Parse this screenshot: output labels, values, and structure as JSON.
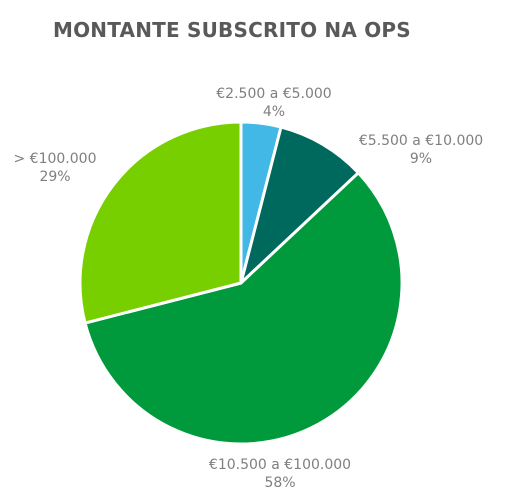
{
  "chart_data": {
    "type": "pie",
    "title": "MONTANTE SUBSCRITO NA OPS",
    "slices": [
      {
        "category": "€2.500 a €5.000",
        "value": 4,
        "label": "4%",
        "color": "#41b8e6"
      },
      {
        "category": "€5.500 a €10.000",
        "value": 9,
        "label": "9%",
        "color": "#00695e"
      },
      {
        "category": "€10.500 a €100.000",
        "value": 58,
        "label": "58%",
        "color": "#009a3c"
      },
      {
        "category": "> €100.000",
        "value": 29,
        "label": "29%",
        "color": "#78cf00"
      }
    ],
    "start_angle": "12 o'clock",
    "direction": "clockwise",
    "legend": "none",
    "label_color": "#7f7f7f"
  }
}
